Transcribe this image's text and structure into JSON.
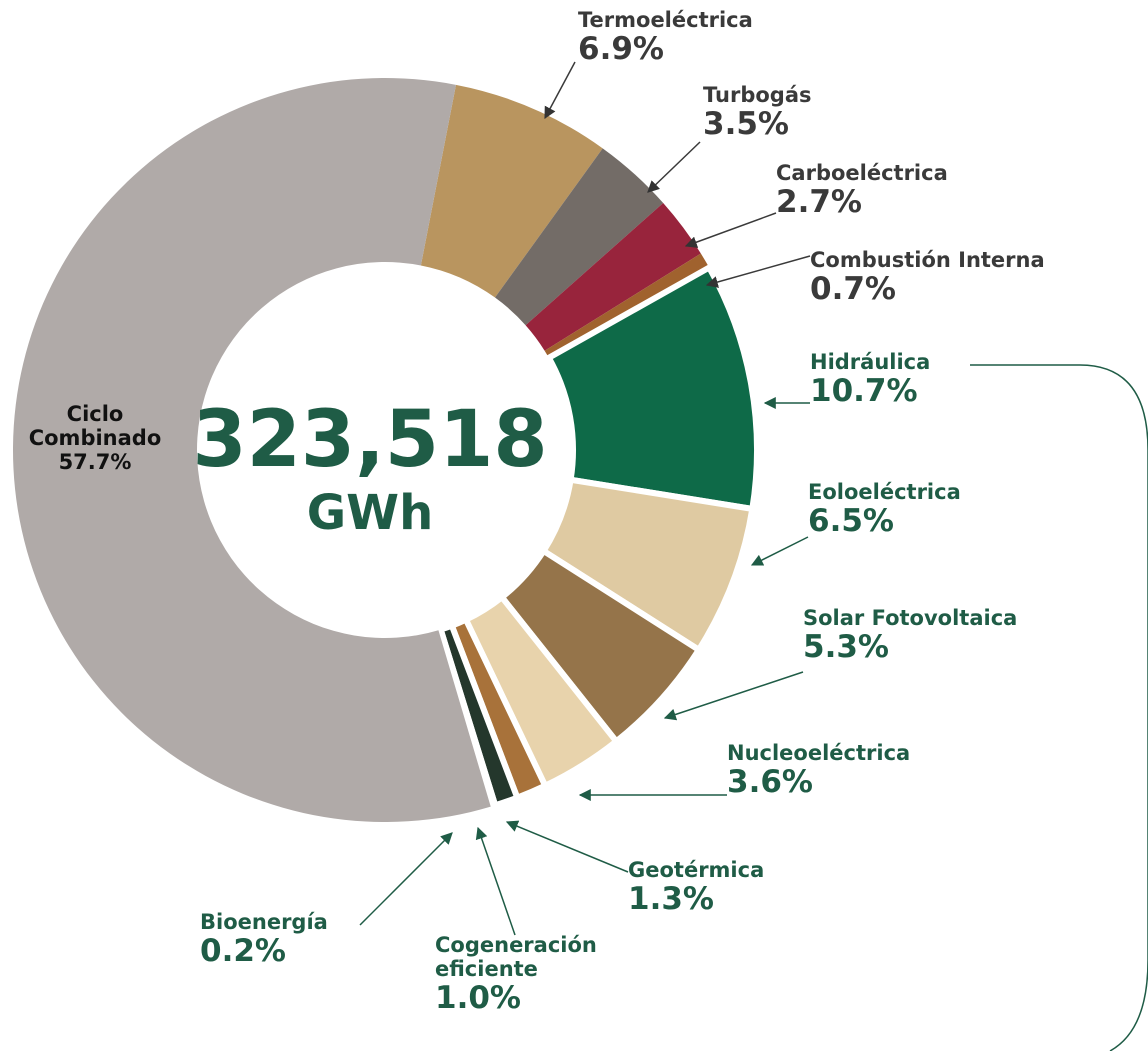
{
  "chart_data": {
    "type": "donut",
    "center_value": "323,518",
    "center_unit": "GWh",
    "categories": [
      "Termoeléctrica",
      "Turbogás",
      "Carboeléctrica",
      "Combustión Interna",
      "Hidráulica",
      "Eoloeléctrica",
      "Solar Fotovoltaica",
      "Nucleoeléctrica",
      "Geotérmica",
      "Cogeneración eficiente",
      "Bioenergía",
      "Ciclo Combinado"
    ],
    "values": [
      6.9,
      3.5,
      2.7,
      0.7,
      10.7,
      6.5,
      5.3,
      3.6,
      1.3,
      1.0,
      0.2,
      57.7
    ],
    "value_labels": [
      "6.9%",
      "3.5%",
      "2.7%",
      "0.7%",
      "10.7%",
      "6.5%",
      "5.3%",
      "3.6%",
      "1.3%",
      "1.0%",
      "0.2%",
      "57.7%"
    ],
    "colors": [
      "#b9955f",
      "#736c67",
      "#98243c",
      "#a0622e",
      "#0e6a48",
      "#dfcaa2",
      "#95744a",
      "#e8d3ac",
      "#a8723a",
      "#24372c",
      "#2f8a5f",
      "#b0aaa8"
    ]
  }
}
